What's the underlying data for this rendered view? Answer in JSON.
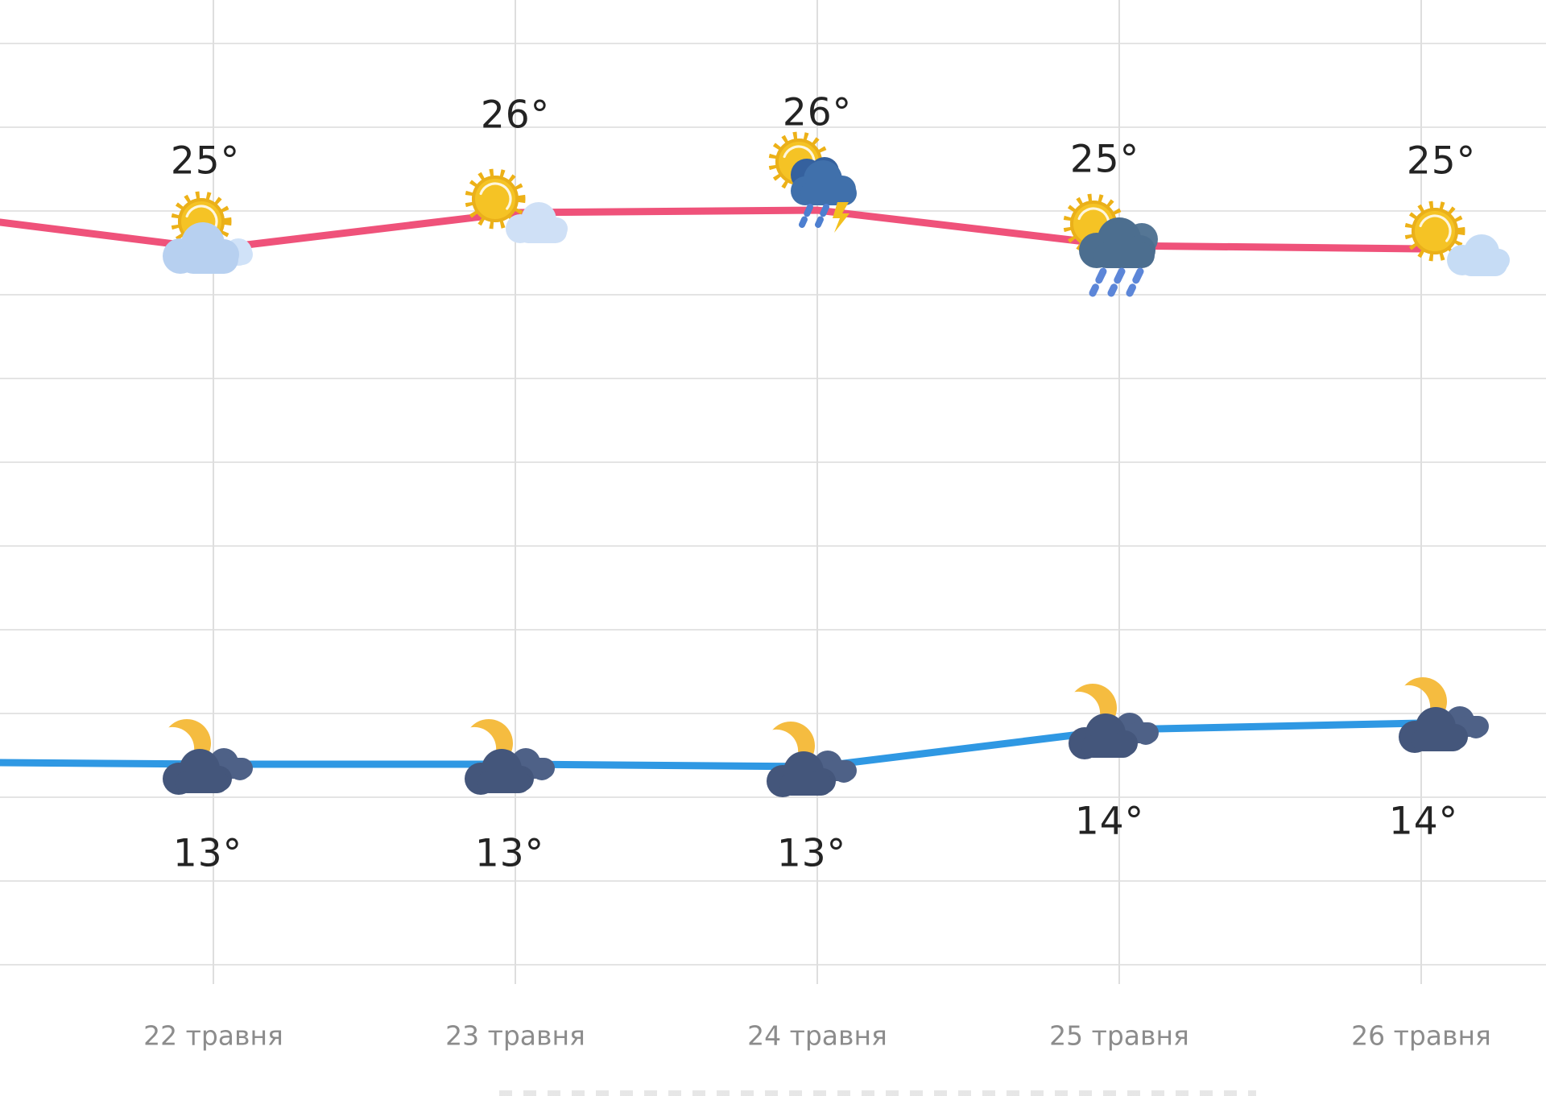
{
  "chart_data": {
    "type": "line",
    "title": "",
    "categories": [
      "22 травня",
      "23 травня",
      "24 травня",
      "25 травня",
      "26 травня"
    ],
    "series": [
      {
        "name": "day",
        "color": "#ef527a",
        "unit": "°",
        "values": [
          25,
          26,
          26,
          25,
          25
        ],
        "labels": [
          "25°",
          "26°",
          "26°",
          "25°",
          "25°"
        ],
        "icons": [
          "sun-behind-cloud",
          "sun-small-cloud",
          "sun-thunderstorm",
          "sun-rain-cloud",
          "sun-small-cloud"
        ]
      },
      {
        "name": "night",
        "color": "#2f98e3",
        "unit": "°",
        "values": [
          13,
          13,
          13,
          14,
          14
        ],
        "labels": [
          "13°",
          "13°",
          "13°",
          "14°",
          "14°"
        ],
        "icons": [
          "moon-cloud",
          "moon-cloud",
          "moon-cloud",
          "moon-cloud",
          "moon-cloud"
        ]
      }
    ],
    "xlabel": "",
    "ylabel": "",
    "legend": false,
    "grid": true
  },
  "colors": {
    "day_line": "#ef527a",
    "night_line": "#2f98e3",
    "grid": "#e4e4e4",
    "temp_label": "#232323",
    "date_label": "#8c8c8c",
    "sun": "#f5c325",
    "moon": "#f5bc40",
    "cloud_light": "#b7d0f0",
    "cloud_night": "#44567b",
    "cloud_storm": "#4070ab",
    "cloud_rain": "#4c6e8f",
    "rain_drops": "#5c86d8",
    "lightning": "#f2c01e"
  }
}
